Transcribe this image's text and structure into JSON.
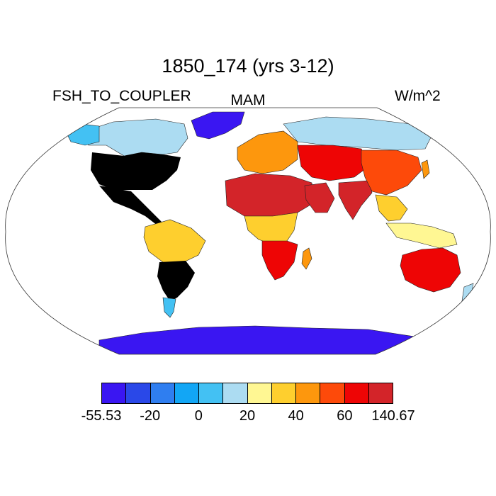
{
  "header": {
    "title": "1850_174 (yrs 3-12)",
    "variable": "FSH_TO_COUPLER",
    "season": "MAM",
    "units": "W/m^2"
  },
  "colorbar": {
    "colors": [
      "#3a16f2",
      "#2a48e8",
      "#2f7ef0",
      "#12a6f5",
      "#43c1f3",
      "#acdcf2",
      "#fff793",
      "#fecf2e",
      "#fd970d",
      "#fd4a0a",
      "#ee0505",
      "#d32429"
    ],
    "tick_labels": [
      "-55.53",
      "-20",
      "0",
      "20",
      "40",
      "60",
      "140.67"
    ]
  },
  "map": {
    "projection": "robinson",
    "regions": [
      {
        "name": "Greenland",
        "level": 0
      },
      {
        "name": "Canada",
        "level": 5
      },
      {
        "name": "Alaska",
        "level": 4
      },
      {
        "name": "United States",
        "level": 10
      },
      {
        "name": "Mexico and Central America",
        "level": 11
      },
      {
        "name": "Amazon",
        "level": 7
      },
      {
        "name": "Southern South America",
        "level": 9
      },
      {
        "name": "Patagonia",
        "level": 4
      },
      {
        "name": "Sahara",
        "level": 11
      },
      {
        "name": "Central Africa",
        "level": 7
      },
      {
        "name": "Southern Africa",
        "level": 10
      },
      {
        "name": "Europe",
        "level": 8
      },
      {
        "name": "Siberia",
        "level": 5
      },
      {
        "name": "Central Asia",
        "level": 10
      },
      {
        "name": "Arabia",
        "level": 11
      },
      {
        "name": "India",
        "level": 11
      },
      {
        "name": "China",
        "level": 9
      },
      {
        "name": "Southeast Asia",
        "level": 7
      },
      {
        "name": "Indonesia",
        "level": 6
      },
      {
        "name": "Australia",
        "level": 10
      },
      {
        "name": "New Zealand",
        "level": 5
      },
      {
        "name": "Antarctica",
        "level": 0
      },
      {
        "name": "Madagascar",
        "level": 8
      },
      {
        "name": "Japan",
        "level": 8
      }
    ]
  }
}
